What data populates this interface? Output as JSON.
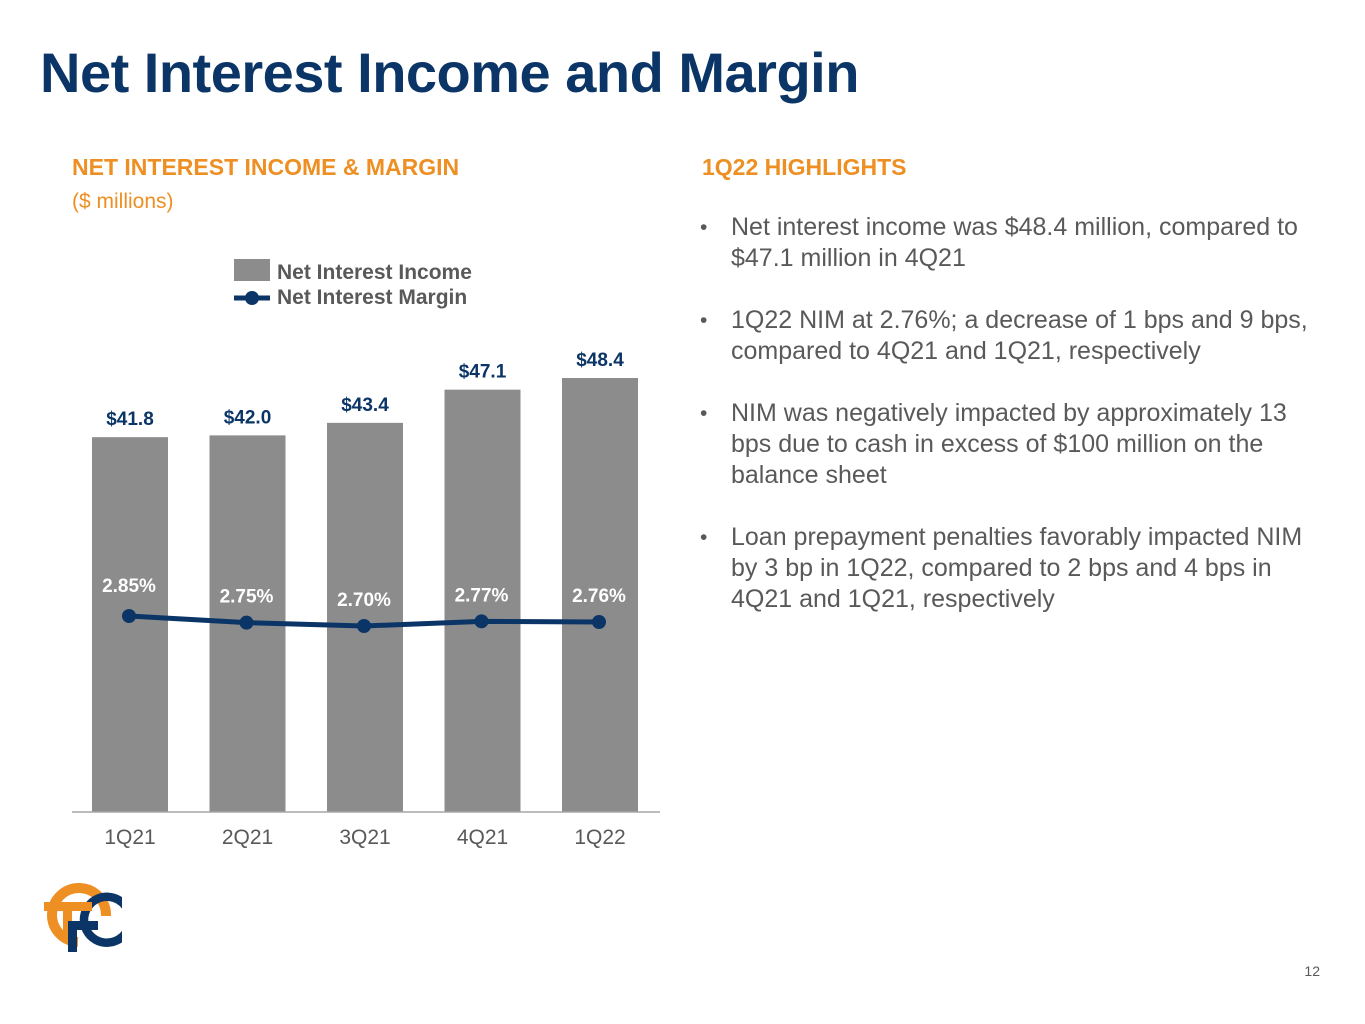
{
  "title": "Net Interest Income and Margin",
  "chart_section": {
    "heading": "NET INTEREST INCOME & MARGIN",
    "subheading": "($ millions)"
  },
  "highlights": {
    "heading": "1Q22 HIGHLIGHTS",
    "bullets": [
      "Net interest income was $48.4 million, compared to $47.1 million in 4Q21",
      "1Q22 NIM at 2.76%; a decrease of 1 bps and 9 bps, compared to 4Q21 and 1Q21, respectively",
      "NIM was negatively impacted by approximately 13 bps due to cash in excess of $100 million on the balance sheet",
      "Loan prepayment penalties favorably impacted NIM by 3 bp in 1Q22, compared to 2 bps and 4 bps in 4Q21 and 1Q21, respectively"
    ]
  },
  "page_number": "12",
  "colors": {
    "title": "#0b3566",
    "accent": "#ee8f23",
    "bar": "#8c8c8c",
    "line": "#0b3566",
    "text": "#595959"
  },
  "chart_data": {
    "type": "bar",
    "categories": [
      "1Q21",
      "2Q21",
      "3Q21",
      "4Q21",
      "1Q22"
    ],
    "series": [
      {
        "name": "Net Interest Income",
        "type": "bar",
        "values": [
          41.8,
          42.0,
          43.4,
          47.1,
          48.4
        ],
        "labels": [
          "$41.8",
          "$42.0",
          "$43.4",
          "$47.1",
          "$48.4"
        ]
      },
      {
        "name": "Net Interest Margin",
        "type": "line",
        "values": [
          2.85,
          2.75,
          2.7,
          2.77,
          2.76
        ],
        "labels": [
          "2.85%",
          "2.75%",
          "2.70%",
          "2.77%",
          "2.76%"
        ]
      }
    ],
    "ylim": [
      0,
      48.4
    ],
    "legend_position": "top-center",
    "grid": false
  }
}
